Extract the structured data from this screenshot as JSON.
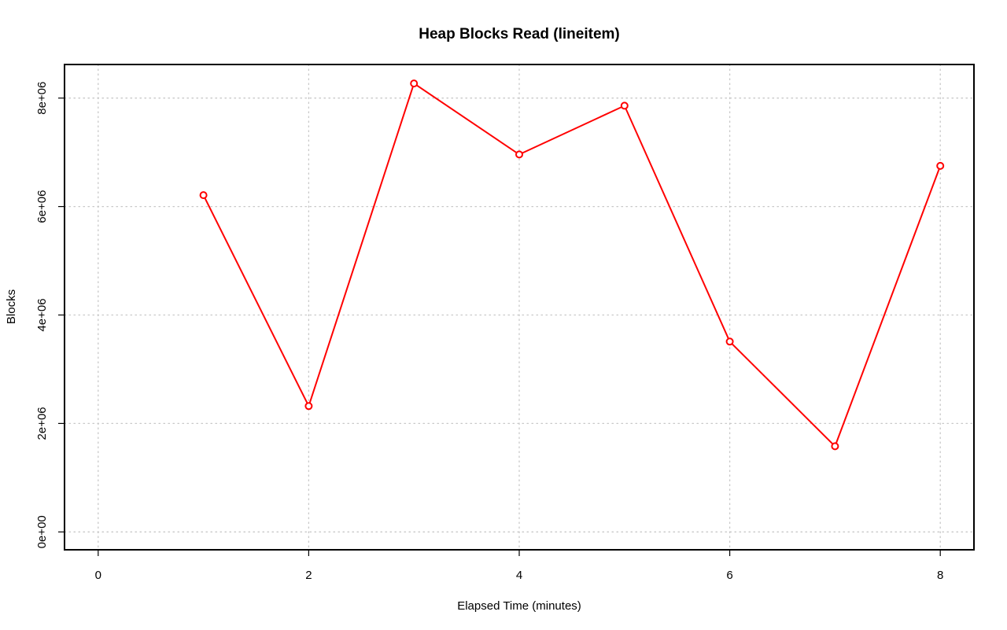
{
  "chart_data": {
    "type": "line",
    "title": "Heap Blocks Read (lineitem)",
    "xlabel": "Elapsed Time (minutes)",
    "ylabel": "Blocks",
    "xlim": [
      0,
      8
    ],
    "ylim": [
      0,
      8000000
    ],
    "x_ticks": [
      0,
      2,
      4,
      6,
      8
    ],
    "x_tick_labels": [
      "0",
      "2",
      "4",
      "6",
      "8"
    ],
    "y_ticks": [
      0,
      2000000,
      4000000,
      6000000,
      8000000
    ],
    "y_tick_labels": [
      "0e+00",
      "2e+06",
      "4e+06",
      "6e+06",
      "8e+06"
    ],
    "grid": true,
    "legend": "none",
    "series": [
      {
        "color": "#ff0000",
        "marker": "open-circle",
        "x": [
          1,
          2,
          3,
          4,
          5,
          6,
          7,
          8
        ],
        "y": [
          6210000,
          2320000,
          8270000,
          6960000,
          7860000,
          3510000,
          1580000,
          6750000
        ]
      }
    ]
  }
}
